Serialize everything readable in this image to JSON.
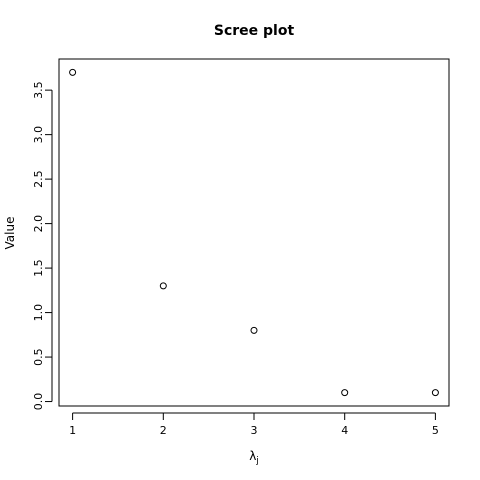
{
  "chart_data": {
    "type": "scatter",
    "title": "Scree plot",
    "xlabel": "λ",
    "xlabel_subscript": "j",
    "ylabel": "Value",
    "x": [
      1,
      2,
      3,
      4,
      5
    ],
    "y": [
      3.7,
      1.3,
      0.8,
      0.1,
      0.1
    ],
    "xticks": [
      "1",
      "2",
      "3",
      "4",
      "5"
    ],
    "yticks": [
      "0.0",
      "0.5",
      "1.0",
      "1.5",
      "2.0",
      "2.5",
      "3.0",
      "3.5"
    ],
    "xlim": [
      0.85,
      5.15
    ],
    "ylim": [
      -0.05,
      3.85
    ],
    "marker": "open-circle",
    "grid": false,
    "legend": "none",
    "colors": {
      "points": "#000000",
      "axes": "#000000",
      "background": "#ffffff"
    }
  }
}
